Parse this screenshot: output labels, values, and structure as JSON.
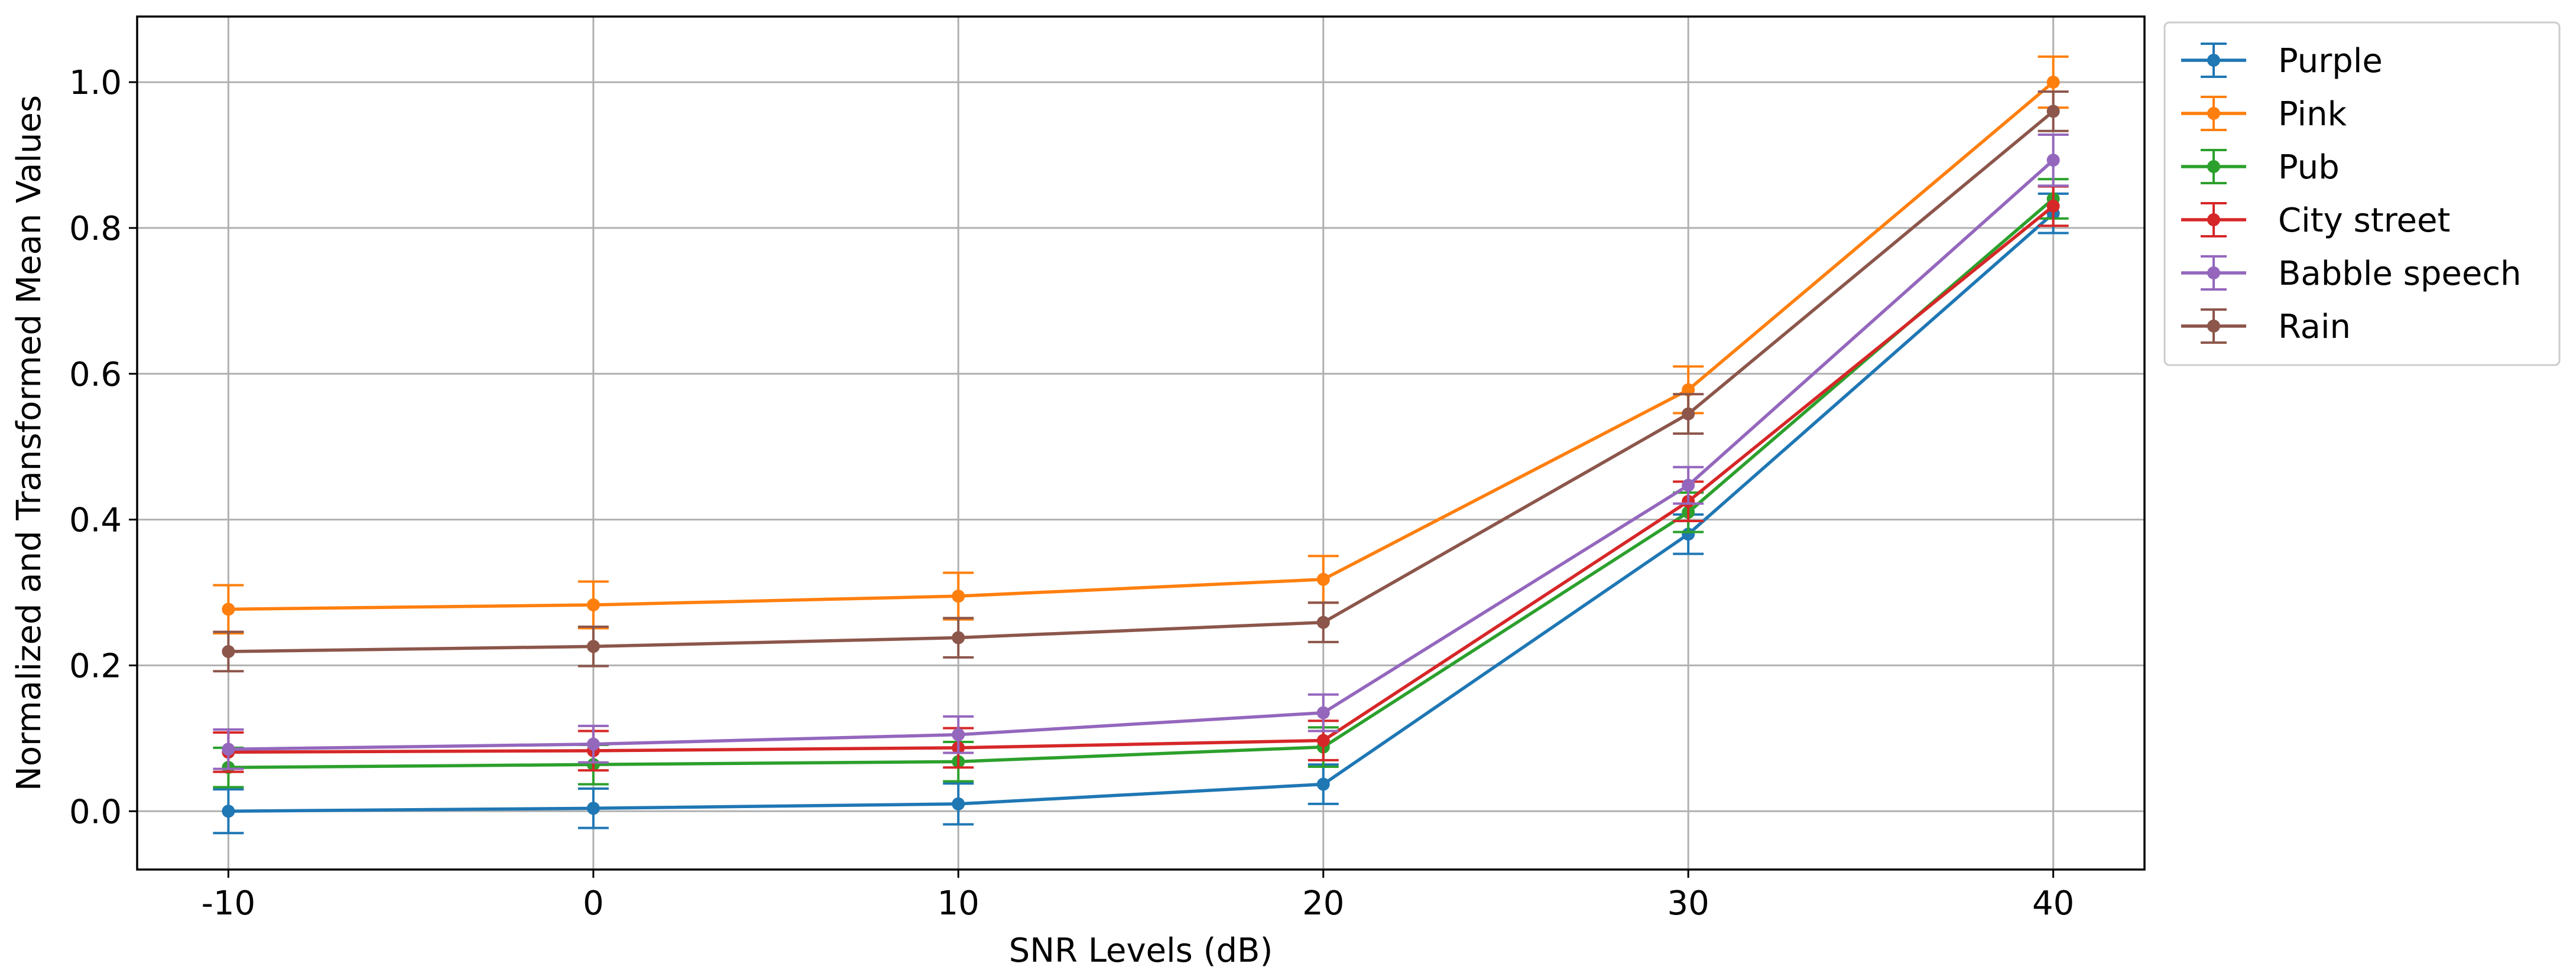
{
  "chart_data": {
    "type": "line",
    "title": "",
    "xlabel": "SNR Levels (dB)",
    "ylabel": "Normalized and Transformed Mean Values",
    "x": [
      -10,
      0,
      10,
      20,
      30,
      40
    ],
    "x_tick_labels": [
      "-10",
      "0",
      "10",
      "20",
      "30",
      "40"
    ],
    "xlim": [
      -12.5,
      42.5
    ],
    "y_ticks": [
      0.0,
      0.2,
      0.4,
      0.6,
      0.8,
      1.0
    ],
    "y_tick_labels": [
      "0.0",
      "0.2",
      "0.4",
      "0.6",
      "0.8",
      "1.0"
    ],
    "ylim": [
      -0.08,
      1.09
    ],
    "grid": true,
    "legend_position": "outside top-right",
    "series": [
      {
        "name": "Purple",
        "color": "#1f77b4",
        "values": [
          0.0,
          0.004,
          0.01,
          0.037,
          0.38,
          0.82
        ],
        "errors": [
          0.03,
          0.027,
          0.028,
          0.027,
          0.027,
          0.027
        ]
      },
      {
        "name": "Pink",
        "color": "#ff7f0e",
        "values": [
          0.277,
          0.283,
          0.295,
          0.318,
          0.578,
          1.0
        ],
        "errors": [
          0.033,
          0.032,
          0.032,
          0.032,
          0.032,
          0.035
        ]
      },
      {
        "name": "Pub",
        "color": "#2ca02c",
        "values": [
          0.06,
          0.064,
          0.068,
          0.088,
          0.41,
          0.84
        ],
        "errors": [
          0.027,
          0.027,
          0.027,
          0.027,
          0.027,
          0.027
        ]
      },
      {
        "name": "City street",
        "color": "#d62728",
        "values": [
          0.081,
          0.083,
          0.087,
          0.097,
          0.425,
          0.83
        ],
        "errors": [
          0.027,
          0.027,
          0.027,
          0.027,
          0.027,
          0.027
        ]
      },
      {
        "name": "Babble speech",
        "color": "#9467bd",
        "values": [
          0.085,
          0.092,
          0.105,
          0.135,
          0.447,
          0.893
        ],
        "errors": [
          0.027,
          0.025,
          0.025,
          0.025,
          0.025,
          0.035
        ]
      },
      {
        "name": "Rain",
        "color": "#8c564b",
        "values": [
          0.219,
          0.226,
          0.238,
          0.259,
          0.545,
          0.96
        ],
        "errors": [
          0.027,
          0.027,
          0.027,
          0.027,
          0.027,
          0.027
        ]
      }
    ]
  }
}
